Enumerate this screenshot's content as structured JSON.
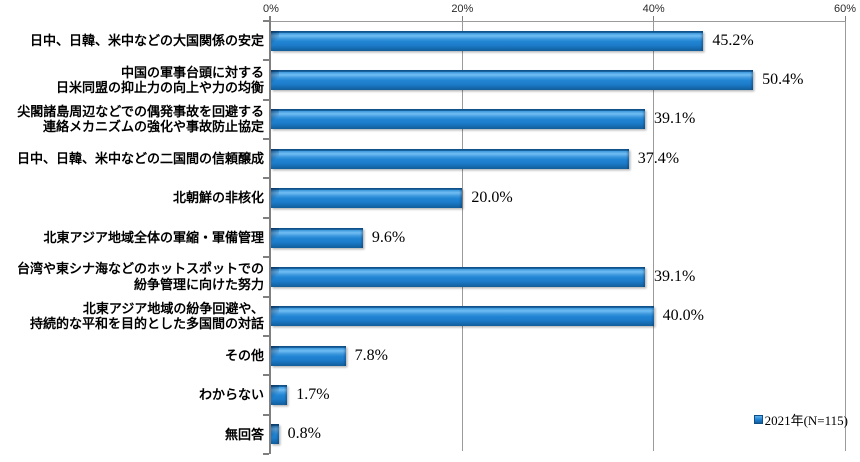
{
  "chart_data": {
    "type": "bar",
    "orientation": "horizontal",
    "title": "",
    "xlabel": "",
    "ylabel": "",
    "xlim": [
      0,
      60
    ],
    "x_ticks": [
      0,
      20,
      40,
      60
    ],
    "tick_labels": [
      "0%",
      "20%",
      "40%",
      "60%"
    ],
    "grid": true,
    "legend_position": "bottom-right",
    "series_name": "2021年(N=115)",
    "categories": [
      "日中、日韓、米中などの大国関係の安定",
      "中国の軍事台頭に対する\n日米同盟の抑止力の向上や力の均衡",
      "尖閣諸島周辺などでの偶発事故を回避する\n連絡メカニズムの強化や事故防止協定",
      "日中、日韓、米中などの二国間の信頼醸成",
      "北朝鮮の非核化",
      "北東アジア地域全体の軍縮・軍備管理",
      "台湾や東シナ海などのホットスポットでの\n紛争管理に向けた努力",
      "北東アジア地域の紛争回避や、\n持続的な平和を目的とした多国間の対話",
      "その他",
      "わからない",
      "無回答"
    ],
    "values": [
      45.2,
      50.4,
      39.1,
      37.4,
      20.0,
      9.6,
      39.1,
      40.0,
      7.8,
      1.7,
      0.8
    ],
    "value_labels": [
      "45.2%",
      "50.4%",
      "39.1%",
      "37.4%",
      "20.0%",
      "9.6%",
      "39.1%",
      "40.0%",
      "7.8%",
      "1.7%",
      "0.8%"
    ]
  },
  "legend": {
    "label": "2021年(N=115)"
  },
  "colors": {
    "bar_main": "#2185d3",
    "bar_highlight": "#71bdf3",
    "bar_dark": "#10538c",
    "grid": "#9b9b9b",
    "axis": "#7f7f7f",
    "text": "#000000"
  }
}
